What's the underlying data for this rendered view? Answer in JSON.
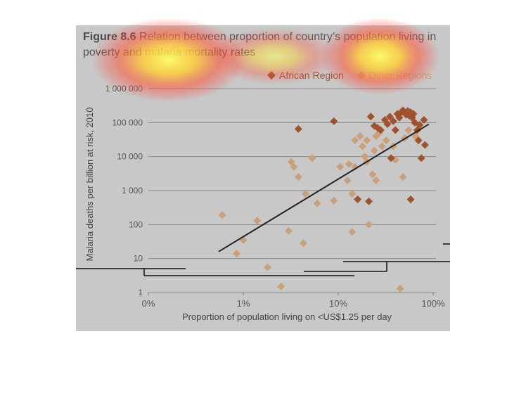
{
  "figure": {
    "number": "Figure 8.6",
    "title": "Relation between proportion of country’s population living in poverty and malaria mortality rates"
  },
  "chart_data": {
    "type": "scatter",
    "title": "Figure 8.6 Relation between proportion of country’s population living in poverty and malaria mortality rates",
    "xlabel": "Proportion of population living on <US$1.25 per day",
    "ylabel": "Malaria deaths per billion at risk, 2010",
    "x_scale": "log",
    "y_scale": "log",
    "xlim": [
      0.1,
      100
    ],
    "ylim": [
      1,
      1000000
    ],
    "x_ticks": [
      {
        "value": 0.1,
        "label": "0%"
      },
      {
        "value": 1,
        "label": "1%"
      },
      {
        "value": 10,
        "label": "10%"
      },
      {
        "value": 100,
        "label": "100%"
      }
    ],
    "y_ticks": [
      {
        "value": 1,
        "label": "1"
      },
      {
        "value": 10,
        "label": "10"
      },
      {
        "value": 100,
        "label": "100"
      },
      {
        "value": 1000,
        "label": "1 000"
      },
      {
        "value": 10000,
        "label": "10 000"
      },
      {
        "value": 100000,
        "label": "100 000"
      },
      {
        "value": 1000000,
        "label": "1 000 000"
      }
    ],
    "grid": "horizontal",
    "legend_position": "top-right",
    "series": [
      {
        "name": "African Region",
        "color": "#a0522d",
        "marker": "diamond",
        "points": [
          [
            3.8,
            65000
          ],
          [
            9,
            110000
          ],
          [
            22,
            150000
          ],
          [
            24,
            80000
          ],
          [
            26,
            70000
          ],
          [
            28,
            60000
          ],
          [
            31,
            120000
          ],
          [
            33,
            90000
          ],
          [
            35,
            150000
          ],
          [
            38,
            110000
          ],
          [
            40,
            60000
          ],
          [
            42,
            180000
          ],
          [
            44,
            140000
          ],
          [
            46,
            200000
          ],
          [
            48,
            230000
          ],
          [
            50,
            190000
          ],
          [
            52,
            170000
          ],
          [
            54,
            220000
          ],
          [
            56,
            160000
          ],
          [
            58,
            200000
          ],
          [
            60,
            140000
          ],
          [
            62,
            180000
          ],
          [
            64,
            100000
          ],
          [
            68,
            60000
          ],
          [
            72,
            85000
          ],
          [
            80,
            120000
          ],
          [
            70,
            30000
          ],
          [
            82,
            22000
          ],
          [
            75,
            9000
          ],
          [
            36,
            9000
          ],
          [
            58,
            550
          ],
          [
            16,
            550
          ],
          [
            21,
            480
          ]
        ]
      },
      {
        "name": "Other Regions",
        "color": "#c9a07a",
        "marker": "diamond",
        "points": [
          [
            0.6,
            190
          ],
          [
            0.85,
            14
          ],
          [
            1.0,
            35
          ],
          [
            1.4,
            130
          ],
          [
            1.8,
            5.5
          ],
          [
            2.5,
            1.5
          ],
          [
            3.2,
            7000
          ],
          [
            3.4,
            5000
          ],
          [
            3.8,
            2500
          ],
          [
            3.0,
            65
          ],
          [
            4.5,
            800
          ],
          [
            5.3,
            9000
          ],
          [
            6.0,
            420
          ],
          [
            4.3,
            28
          ],
          [
            9.0,
            500
          ],
          [
            10.5,
            5000
          ],
          [
            12.5,
            2000
          ],
          [
            13,
            6000
          ],
          [
            14,
            800
          ],
          [
            14,
            60
          ],
          [
            15,
            5000
          ],
          [
            15,
            30000
          ],
          [
            17,
            40000
          ],
          [
            18,
            20000
          ],
          [
            19,
            10000
          ],
          [
            20,
            7000
          ],
          [
            21,
            100
          ],
          [
            23,
            3000
          ],
          [
            25,
            2000
          ],
          [
            25,
            40000
          ],
          [
            27,
            50000
          ],
          [
            29,
            20000
          ],
          [
            32,
            30000
          ],
          [
            38,
            20000
          ],
          [
            40,
            8000
          ],
          [
            48,
            2500
          ],
          [
            50,
            35000
          ],
          [
            45,
            1.3
          ],
          [
            24,
            15000
          ],
          [
            20,
            30000
          ],
          [
            55,
            60000
          ],
          [
            65,
            40000
          ]
        ]
      }
    ],
    "trendline": {
      "x": [
        0.55,
        90
      ],
      "y": [
        16,
        90000
      ],
      "color": "#222222"
    }
  },
  "legend": {
    "african_label": "African Region",
    "other_label": "Other Regions"
  }
}
